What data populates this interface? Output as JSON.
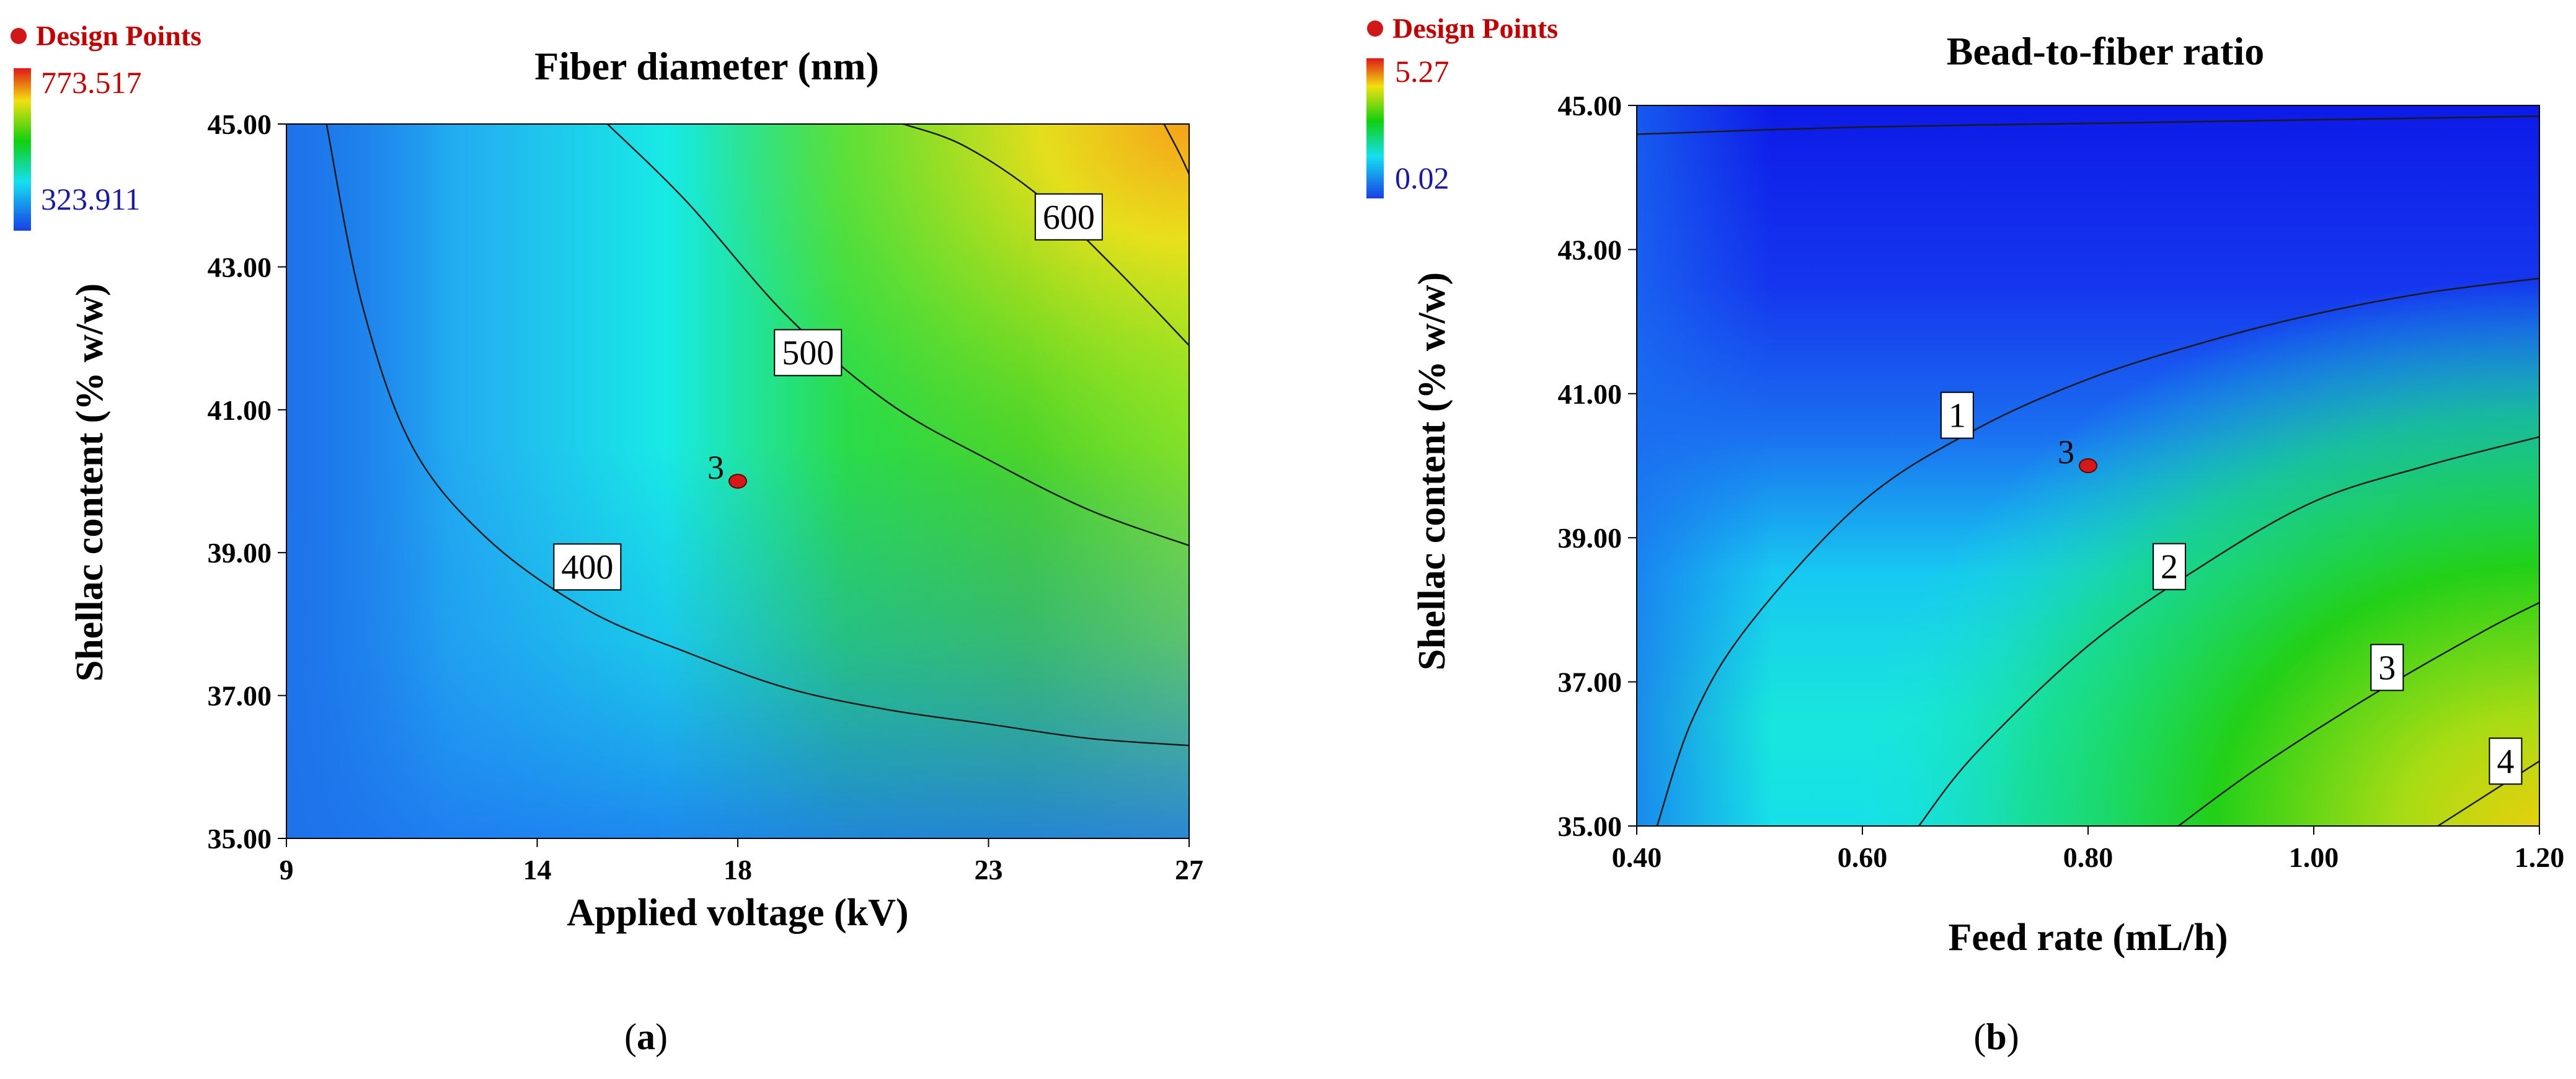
{
  "chart_data": [
    {
      "type": "heatmap",
      "subtype": "contour",
      "panel_letter": "a",
      "title": "Fiber diameter (nm)",
      "xlabel": "Applied voltage (kV)",
      "ylabel": "Shellac content (% w/w)",
      "xlim": [
        9,
        27
      ],
      "ylim": [
        35,
        45
      ],
      "x_ticks": [
        9,
        14,
        18,
        23,
        27
      ],
      "x_tick_labels": [
        "9",
        "14",
        "18",
        "23",
        "27"
      ],
      "y_ticks": [
        35,
        37,
        39,
        41,
        43,
        45
      ],
      "y_tick_labels": [
        "35.00",
        "37.00",
        "39.00",
        "41.00",
        "43.00",
        "45.00"
      ],
      "legend": {
        "marker_label": "Design Points",
        "max": 773.517,
        "min": 323.911,
        "max_label": "773.517",
        "min_label": "323.911"
      },
      "contours": [
        {
          "level": 400,
          "label": "400",
          "label_at": [
            15.0,
            38.8
          ],
          "points": [
            [
              9.8,
              45.0
            ],
            [
              10.5,
              42.5
            ],
            [
              11.5,
              40.5
            ],
            [
              13.0,
              39.2
            ],
            [
              15.0,
              38.2
            ],
            [
              17.0,
              37.6
            ],
            [
              19.0,
              37.1
            ],
            [
              21.0,
              36.8
            ],
            [
              23.0,
              36.6
            ],
            [
              25.0,
              36.4
            ],
            [
              27.0,
              36.3
            ]
          ]
        },
        {
          "level": 500,
          "label": "500",
          "label_at": [
            19.4,
            41.8
          ],
          "points": [
            [
              15.4,
              45.0
            ],
            [
              17.0,
              43.9
            ],
            [
              19.0,
              42.3
            ],
            [
              21.0,
              41.1
            ],
            [
              23.0,
              40.3
            ],
            [
              25.0,
              39.6
            ],
            [
              27.0,
              39.1
            ]
          ]
        },
        {
          "level": 600,
          "label": "600",
          "label_at": [
            24.6,
            43.7
          ],
          "points": [
            [
              21.3,
              45.0
            ],
            [
              22.5,
              44.7
            ],
            [
              24.0,
              44.0
            ],
            [
              25.5,
              43.0
            ],
            [
              27.0,
              41.9
            ]
          ]
        },
        {
          "level": 700,
          "label": "",
          "label_at": null,
          "points": [
            [
              26.5,
              45.0
            ],
            [
              26.8,
              44.6
            ],
            [
              27.0,
              44.3
            ]
          ]
        }
      ],
      "design_points": [
        {
          "x": 18,
          "y": 40,
          "label": "3"
        }
      ]
    },
    {
      "type": "heatmap",
      "subtype": "contour",
      "panel_letter": "b",
      "title": "Bead-to-fiber ratio",
      "xlabel": "Feed rate (mL/h)",
      "ylabel": "Shellac content (% w/w)",
      "xlim": [
        0.4,
        1.2
      ],
      "ylim": [
        35,
        45
      ],
      "x_ticks": [
        0.4,
        0.6,
        0.8,
        1.0,
        1.2
      ],
      "x_tick_labels": [
        "0.40",
        "0.60",
        "0.80",
        "1.00",
        "1.20"
      ],
      "y_ticks": [
        35,
        37,
        39,
        41,
        43,
        45
      ],
      "y_tick_labels": [
        "35.00",
        "37.00",
        "39.00",
        "41.00",
        "43.00",
        "45.00"
      ],
      "legend": {
        "marker_label": "Design Points",
        "max": 5.27,
        "min": 0.02,
        "max_label": "5.27",
        "min_label": "0.02"
      },
      "contours": [
        {
          "level": 0,
          "label": "",
          "label_at": null,
          "points": [
            [
              0.4,
              44.6
            ],
            [
              0.6,
              44.7
            ],
            [
              0.8,
              44.75
            ],
            [
              1.0,
              44.8
            ],
            [
              1.2,
              44.85
            ]
          ]
        },
        {
          "level": 1,
          "label": "1",
          "label_at": [
            0.684,
            40.7
          ],
          "points": [
            [
              0.418,
              35.0
            ],
            [
              0.45,
              36.5
            ],
            [
              0.5,
              37.8
            ],
            [
              0.6,
              39.5
            ],
            [
              0.7,
              40.5
            ],
            [
              0.8,
              41.2
            ],
            [
              0.9,
              41.7
            ],
            [
              1.0,
              42.1
            ],
            [
              1.1,
              42.4
            ],
            [
              1.2,
              42.6
            ]
          ]
        },
        {
          "level": 2,
          "label": "2",
          "label_at": [
            0.872,
            38.6
          ],
          "points": [
            [
              0.65,
              35.0
            ],
            [
              0.7,
              36.0
            ],
            [
              0.8,
              37.5
            ],
            [
              0.9,
              38.6
            ],
            [
              1.0,
              39.5
            ],
            [
              1.1,
              40.0
            ],
            [
              1.2,
              40.4
            ]
          ]
        },
        {
          "level": 3,
          "label": "3",
          "label_at": [
            1.065,
            37.2
          ],
          "points": [
            [
              0.88,
              35.0
            ],
            [
              0.95,
              35.8
            ],
            [
              1.05,
              36.8
            ],
            [
              1.15,
              37.7
            ],
            [
              1.2,
              38.1
            ]
          ]
        },
        {
          "level": 4,
          "label": "4",
          "label_at": [
            1.17,
            35.9
          ],
          "points": [
            [
              1.11,
              35.0
            ],
            [
              1.15,
              35.4
            ],
            [
              1.2,
              35.9
            ]
          ]
        }
      ],
      "design_points": [
        {
          "x": 0.8,
          "y": 40,
          "label": "3"
        }
      ]
    }
  ]
}
